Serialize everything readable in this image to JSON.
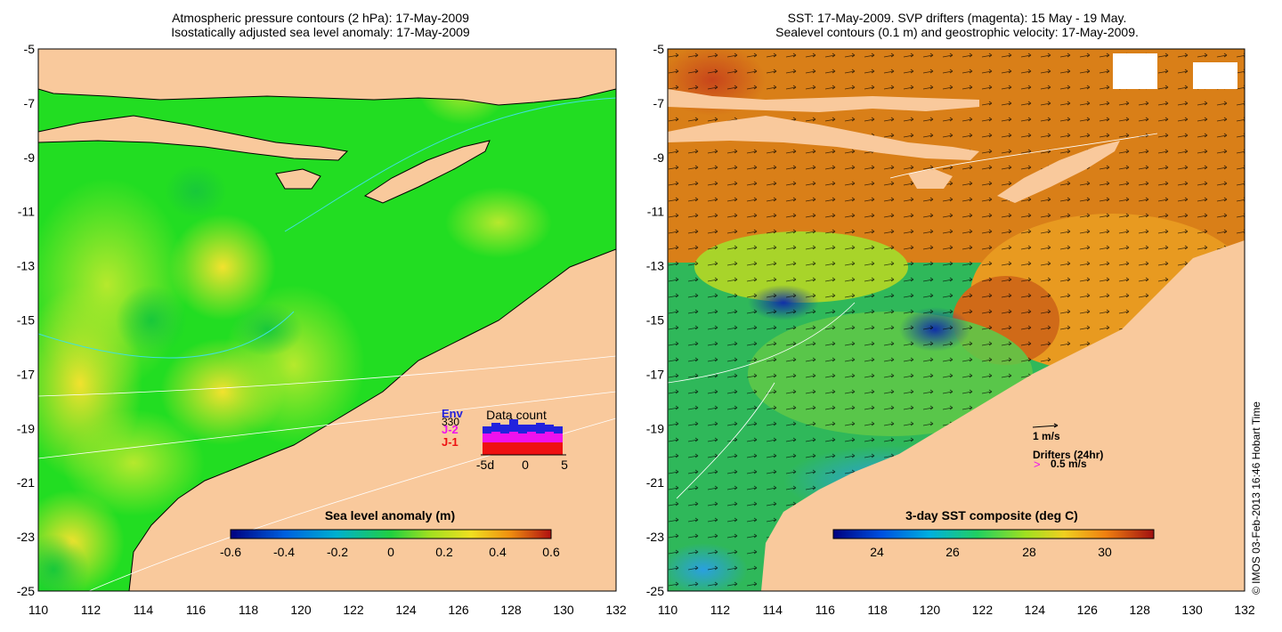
{
  "left_panel": {
    "title_line1": "Atmospheric pressure contours (2 hPa): 17-May-2009",
    "title_line2": "Isostatically adjusted sea level anomaly: 17-May-2009",
    "colorbar": {
      "label": "Sea level anomaly (m)",
      "ticks": [
        "-0.6",
        "-0.4",
        "-0.2",
        "0",
        "0.2",
        "0.4",
        "0.6"
      ]
    },
    "data_count": {
      "title": "Data count",
      "count_value": "330",
      "missions": [
        {
          "name": "Env",
          "color": "#2222dd"
        },
        {
          "name": "J-2",
          "color": "#ee11ee"
        },
        {
          "name": "J-1",
          "color": "#ee1111"
        }
      ],
      "ticks": [
        "-5d",
        "0",
        "5"
      ]
    }
  },
  "right_panel": {
    "title_line1": "SST: 17-May-2009. SVP drifters (magenta): 15 May - 19 May.",
    "title_line2": "Sealevel contours (0.1 m) and geostrophic velocity: 17-May-2009.",
    "colorbar": {
      "label": "3-day SST composite (deg C)",
      "ticks": [
        "24",
        "26",
        "28",
        "30"
      ]
    },
    "velocity_legend": "1 m/s",
    "drifters_legend": "Drifters (24hr)",
    "drifters_speed": "0.5 m/s"
  },
  "axes": {
    "y_ticks": [
      "-5",
      "-7",
      "-9",
      "-11",
      "-13",
      "-15",
      "-17",
      "-19",
      "-21",
      "-23",
      "-25"
    ],
    "x_ticks": [
      "110",
      "112",
      "114",
      "116",
      "118",
      "120",
      "122",
      "124",
      "126",
      "128",
      "130",
      "132"
    ]
  },
  "credit": "© IMOS 03-Feb-2013 16:46 Hobart Time",
  "colors": {
    "land": "#f9c99c",
    "sla_base": "#22dd22",
    "sst_warm": "#e08a1a",
    "sst_cool": "#2fb85a"
  }
}
